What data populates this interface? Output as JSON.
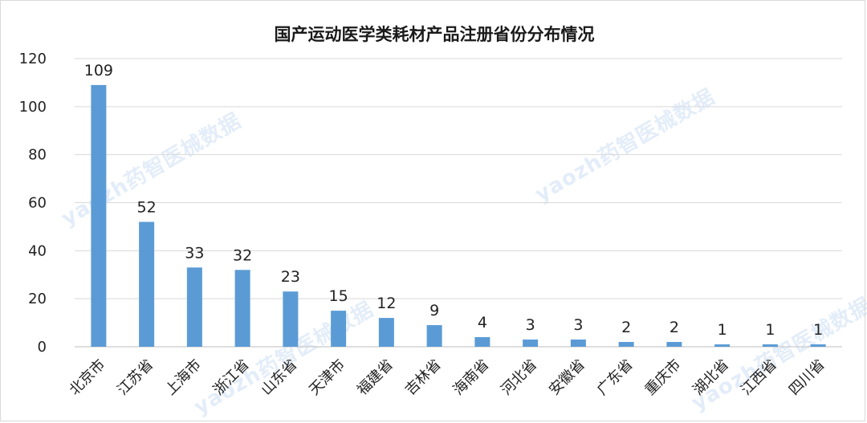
{
  "chart_data": {
    "type": "bar",
    "title": "国产运动医学类耗材产品注册省份分布情况",
    "xlabel": "",
    "ylabel": "",
    "ylim": [
      0,
      120
    ],
    "yticks": [
      0,
      20,
      40,
      60,
      80,
      100,
      120
    ],
    "grid": true,
    "bar_color": "#5b9bd5",
    "categories": [
      "北京市",
      "江苏省",
      "上海市",
      "浙江省",
      "山东省",
      "天津市",
      "福建省",
      "吉林省",
      "海南省",
      "河北省",
      "安徽省",
      "广东省",
      "重庆市",
      "湖北省",
      "江西省",
      "四川省"
    ],
    "values": [
      109,
      52,
      33,
      32,
      23,
      15,
      12,
      9,
      4,
      3,
      3,
      2,
      2,
      1,
      1,
      1
    ]
  },
  "watermarks": [
    "yaozh药智医械数据",
    "yaozh药智医械数据",
    "yaozh药智医械数据",
    "yaozh药智医械数据"
  ]
}
